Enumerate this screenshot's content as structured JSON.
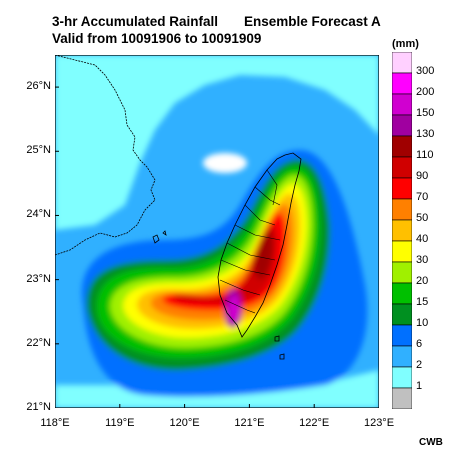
{
  "title": {
    "line1": "3-hr Accumulated Rainfall",
    "line1_right": "Ensemble Forecast A",
    "line2": "Valid from 10091906 to 10091909"
  },
  "map": {
    "lon_range": [
      118,
      123
    ],
    "lat_range": [
      21,
      26.5
    ],
    "lat_ticks": [
      "26°N",
      "25°N",
      "24°N",
      "23°N",
      "22°N",
      "21°N"
    ],
    "lon_ticks": [
      "118°E",
      "119°E",
      "120°E",
      "121°E",
      "122°E",
      "123°E"
    ]
  },
  "colorbar": {
    "unit": "(mm)",
    "levels": [
      "300",
      "200",
      "150",
      "130",
      "110",
      "90",
      "70",
      "50",
      "40",
      "30",
      "20",
      "15",
      "10",
      "6",
      "2",
      "1"
    ],
    "colors": [
      "#ffd0ff",
      "#ff00ff",
      "#d000d0",
      "#a000a0",
      "#a00000",
      "#d00000",
      "#ff0000",
      "#ff8000",
      "#ffc000",
      "#ffff00",
      "#a0f000",
      "#00c000",
      "#009020",
      "#0070ff",
      "#30b0ff",
      "#80ffff",
      "#c0c0c0"
    ]
  },
  "credit": "CWB"
}
